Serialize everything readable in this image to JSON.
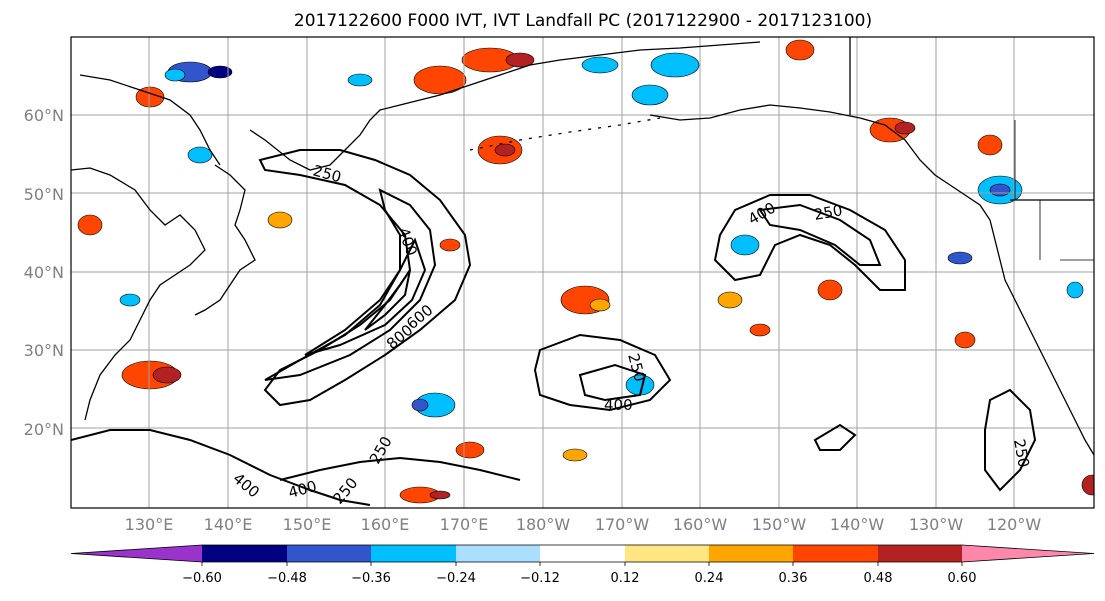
{
  "title": "2017122600 F000 IVT, IVT Landfall PC (2017122900 - 2017123100)",
  "map": {
    "lat_labels": [
      "60°N",
      "50°N",
      "40°N",
      "30°N",
      "20°N"
    ],
    "lon_labels": [
      "130°E",
      "140°E",
      "150°E",
      "160°E",
      "170°E",
      "180°W",
      "170°W",
      "160°W",
      "150°W",
      "140°W",
      "130°W",
      "120°W"
    ],
    "contour_labels": [
      "250",
      "400",
      "600",
      "800",
      "250",
      "400",
      "250",
      "400",
      "250",
      "400",
      "250",
      "400",
      "250"
    ],
    "colors": {
      "land_outline": "#000000",
      "gridline": "#a0a0a0",
      "contour": "#000000"
    }
  },
  "colorbar": {
    "levels": [
      -0.6,
      -0.48,
      -0.36,
      -0.24,
      -0.12,
      0.12,
      0.24,
      0.36,
      0.48,
      0.6
    ],
    "tick_labels": [
      "−0.60",
      "−0.48",
      "−0.36",
      "−0.24",
      "−0.12",
      "0.12",
      "0.24",
      "0.36",
      "0.48",
      "0.60"
    ],
    "colors": [
      "#9933cc",
      "#000080",
      "#3355cc",
      "#00bfff",
      "#aadfff",
      "#ffffff",
      "#ffe680",
      "#ffa500",
      "#ff4500",
      "#b22222",
      "#ff88aa"
    ],
    "extend": "both"
  }
}
